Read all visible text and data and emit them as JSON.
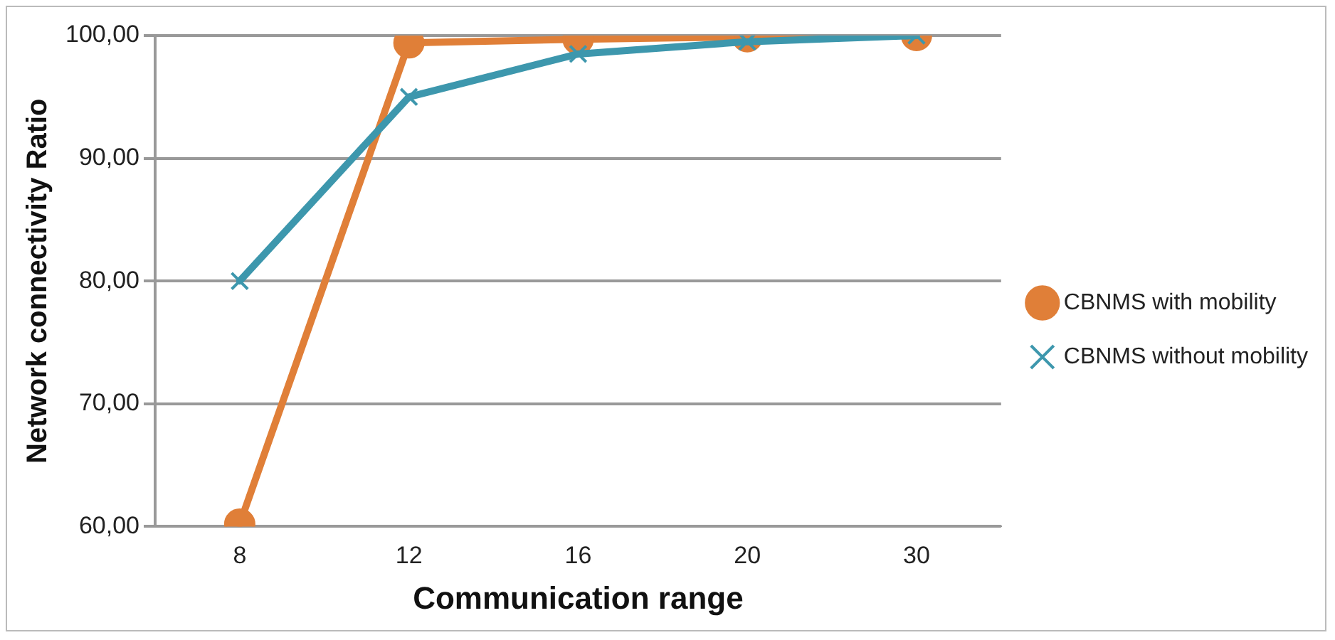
{
  "chart_data": {
    "type": "line",
    "xlabel": "Communication range",
    "ylabel": "Network connectivity Ratio",
    "categories": [
      "8",
      "12",
      "16",
      "20",
      "30"
    ],
    "ylim": [
      60,
      100
    ],
    "yticks": [
      {
        "value": 60,
        "label": "60,00"
      },
      {
        "value": 70,
        "label": "70,00"
      },
      {
        "value": 80,
        "label": "80,00"
      },
      {
        "value": 90,
        "label": "90,00"
      },
      {
        "value": 100,
        "label": "100,00"
      }
    ],
    "grid": "y",
    "legend": "right",
    "line_style": "solid",
    "series": [
      {
        "name": "CBNMS with mobility",
        "color": "#e07f38",
        "marker": "circle",
        "values": [
          60.2,
          99.4,
          99.7,
          99.9,
          100
        ]
      },
      {
        "name": "CBNMS without mobility",
        "color": "#3d97ad",
        "marker": "cross",
        "values": [
          80,
          95,
          98.5,
          99.5,
          100
        ]
      }
    ]
  }
}
